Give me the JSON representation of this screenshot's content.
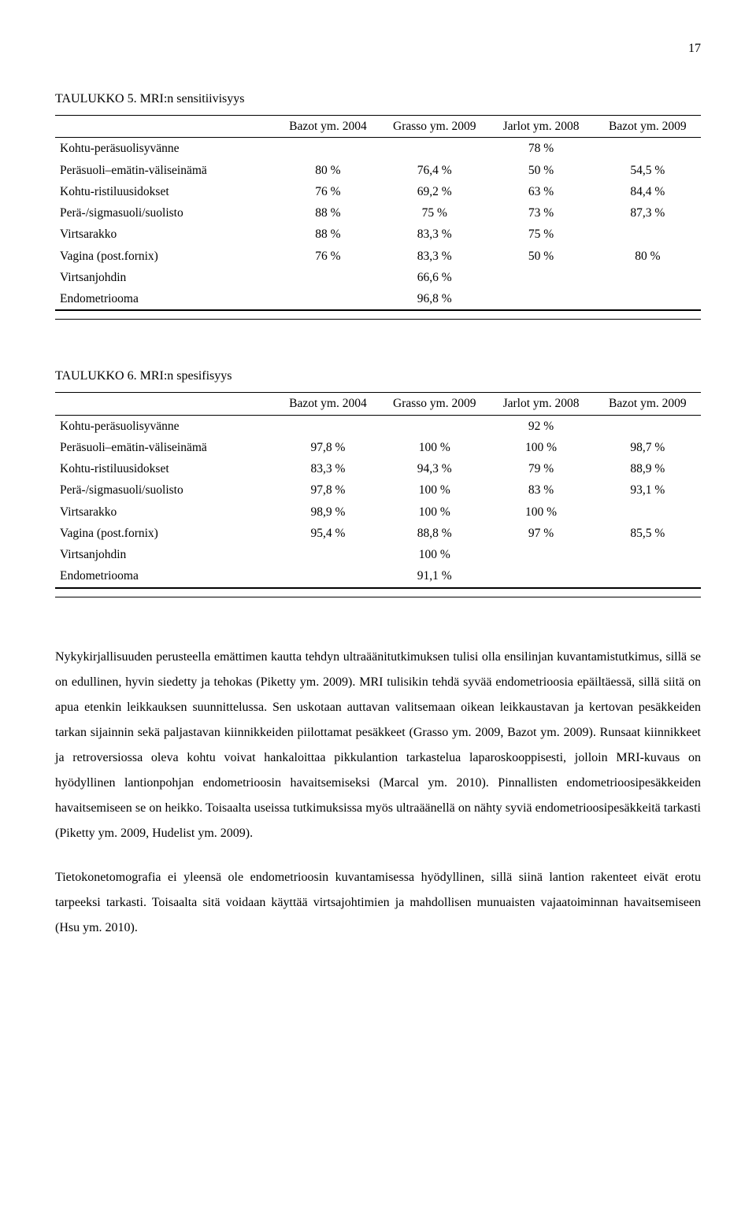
{
  "page_number": "17",
  "table1": {
    "title": "TAULUKKO 5. MRI:n sensitiivisyys",
    "headers": [
      "",
      "Bazot ym. 2004",
      "Grasso ym. 2009",
      "Jarlot ym. 2008",
      "Bazot ym. 2009"
    ],
    "rows": [
      [
        "Kohtu-peräsuolisyvänne",
        "",
        "",
        "78 %",
        ""
      ],
      [
        "Peräsuoli–emätin-väliseinämä",
        "80 %",
        "76,4 %",
        "50 %",
        "54,5 %"
      ],
      [
        "Kohtu-ristiluusidokset",
        "76 %",
        "69,2 %",
        "63 %",
        "84,4 %"
      ],
      [
        "Perä-/sigmasuoli/suolisto",
        "88 %",
        "75 %",
        "73 %",
        "87,3 %"
      ],
      [
        "Virtsarakko",
        "88 %",
        "83,3 %",
        "75 %",
        ""
      ],
      [
        "Vagina (post.fornix)",
        "76 %",
        "83,3 %",
        "50 %",
        "80 %"
      ],
      [
        "Virtsanjohdin",
        "",
        "66,6 %",
        "",
        ""
      ],
      [
        "Endometriooma",
        "",
        "96,8 %",
        "",
        ""
      ]
    ]
  },
  "table2": {
    "title": "TAULUKKO 6. MRI:n spesifisyys",
    "headers": [
      "",
      "Bazot ym. 2004",
      "Grasso ym. 2009",
      "Jarlot ym. 2008",
      "Bazot ym. 2009"
    ],
    "rows": [
      [
        "Kohtu-peräsuolisyvänne",
        "",
        "",
        "92 %",
        ""
      ],
      [
        "Peräsuoli–emätin-väliseinämä",
        "97,8 %",
        "100 %",
        "100 %",
        "98,7 %"
      ],
      [
        "Kohtu-ristiluusidokset",
        "83,3 %",
        "94,3 %",
        "79 %",
        "88,9 %"
      ],
      [
        "Perä-/sigmasuoli/suolisto",
        "97,8 %",
        "100 %",
        "83 %",
        "93,1 %"
      ],
      [
        "Virtsarakko",
        "98,9 %",
        "100 %",
        "100 %",
        ""
      ],
      [
        "Vagina (post.fornix)",
        "95,4 %",
        "88,8 %",
        "97 %",
        "85,5 %"
      ],
      [
        "Virtsanjohdin",
        "",
        "100 %",
        "",
        ""
      ],
      [
        "Endometriooma",
        "",
        "91,1 %",
        "",
        ""
      ]
    ]
  },
  "paragraph1": "Nykykirjallisuuden perusteella emättimen kautta tehdyn ultraäänitutkimuksen tulisi olla ensilinjan kuvantamistutkimus, sillä se on edullinen, hyvin siedetty ja tehokas (Piketty ym. 2009). MRI tulisikin tehdä syvää endometrioosia epäiltäessä, sillä siitä on apua etenkin leikkauksen suunnittelussa. Sen uskotaan auttavan valitsemaan oikean leikkaustavan ja kertovan pesäkkeiden tarkan sijainnin sekä paljastavan kiinnikkeiden piilottamat pesäkkeet (Grasso ym. 2009, Bazot ym. 2009). Runsaat kiinnikkeet ja retroversiossa oleva kohtu voivat hankaloittaa pikkulantion tarkastelua laparoskooppisesti, jolloin MRI-kuvaus on hyödyllinen lantionpohjan endometrioosin havaitsemiseksi (Marcal ym. 2010). Pinnallisten endometrioosipesäkkeiden havaitsemiseen se on heikko. Toisaalta useissa tutkimuksissa myös ultraäänellä on nähty syviä endometrioosipesäkkeitä tarkasti (Piketty ym. 2009, Hudelist ym. 2009).",
  "paragraph2": "Tietokonetomografia ei yleensä ole endometrioosin kuvantamisessa hyödyllinen, sillä siinä lantion rakenteet eivät erotu tarpeeksi tarkasti. Toisaalta sitä voidaan käyttää virtsajohtimien ja mahdollisen munuaisten vajaatoiminnan havaitsemiseen (Hsu ym. 2010)."
}
